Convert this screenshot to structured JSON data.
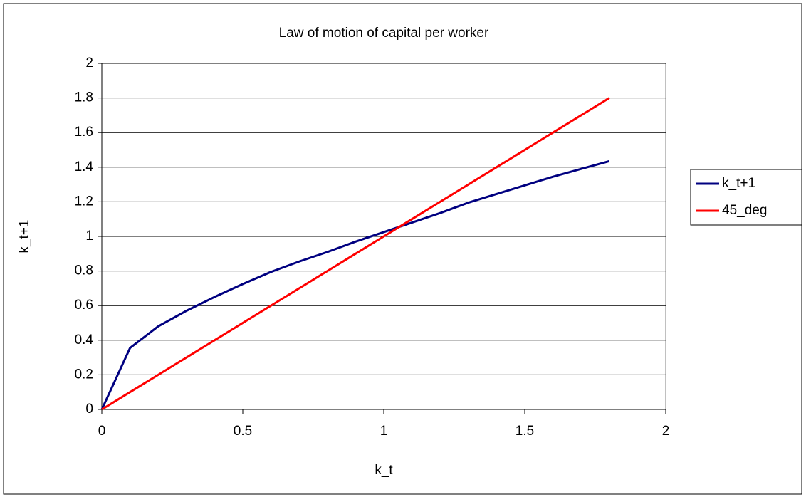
{
  "chart_data": {
    "type": "line",
    "title": "Law of motion of capital per worker",
    "x_label": "k_t",
    "y_label": "k_t+1",
    "x": [
      0,
      0.1,
      0.2,
      0.3,
      0.4,
      0.5,
      0.6,
      0.7,
      0.8,
      0.9,
      1.0,
      1.1,
      1.2,
      1.3,
      1.4,
      1.5,
      1.6,
      1.7,
      1.8
    ],
    "series": [
      {
        "name": "k_t+1",
        "color": "#000080",
        "values": [
          0,
          0.355,
          0.48,
          0.57,
          0.65,
          0.725,
          0.795,
          0.855,
          0.91,
          0.97,
          1.025,
          1.08,
          1.135,
          1.195,
          1.245,
          1.295,
          1.345,
          1.39,
          1.435
        ]
      },
      {
        "name": "45_deg",
        "color": "#ff0000",
        "values": [
          0,
          0.1,
          0.2,
          0.3,
          0.4,
          0.5,
          0.6,
          0.7,
          0.8,
          0.9,
          1.0,
          1.1,
          1.2,
          1.3,
          1.4,
          1.5,
          1.6,
          1.7,
          1.8
        ]
      }
    ],
    "xlim": [
      0,
      2
    ],
    "xticks": [
      0,
      0.5,
      1,
      1.5,
      2
    ],
    "ylim": [
      0,
      2
    ],
    "yticks": [
      0,
      0.2,
      0.4,
      0.6,
      0.8,
      1,
      1.2,
      1.4,
      1.6,
      1.8,
      2
    ],
    "grid": true,
    "legend": "right"
  }
}
